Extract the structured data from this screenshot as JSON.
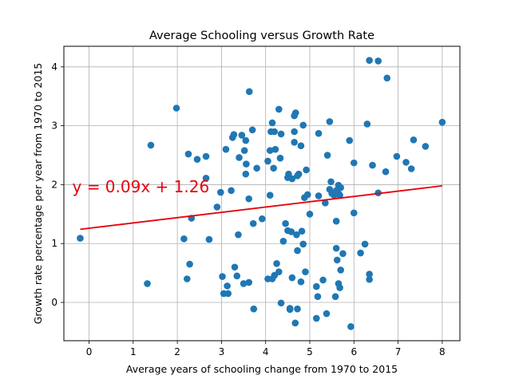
{
  "chart_data": {
    "type": "scatter",
    "title": "Average Schooling versus Growth Rate",
    "xlabel": "Average years of schooling change from 1970 to 2015",
    "ylabel": "Growth rate percentage per year from 1970 to 2015",
    "xlim": [
      -0.57,
      8.4
    ],
    "ylim": [
      -0.65,
      4.35
    ],
    "xticks": [
      0,
      1,
      2,
      3,
      4,
      5,
      6,
      7,
      8
    ],
    "yticks": [
      0,
      1,
      2,
      3,
      4
    ],
    "grid": true,
    "colors": {
      "points": "#1f77b4",
      "fit_line": "#e8000b",
      "annotation": "#e8000b",
      "grid": "#b0b0b0"
    },
    "fit_line": {
      "slope": 0.09,
      "intercept": 1.26,
      "x_range": [
        -0.2,
        8.0
      ]
    },
    "annotation": {
      "text": "y = 0.09x + 1.26",
      "x": -0.38,
      "y": 1.87
    },
    "points": [
      {
        "x": -0.2,
        "y": 1.09
      },
      {
        "x": 1.32,
        "y": 0.32
      },
      {
        "x": 1.4,
        "y": 2.67
      },
      {
        "x": 1.98,
        "y": 3.3
      },
      {
        "x": 2.15,
        "y": 1.08
      },
      {
        "x": 2.22,
        "y": 0.4
      },
      {
        "x": 2.25,
        "y": 2.52
      },
      {
        "x": 2.28,
        "y": 0.65
      },
      {
        "x": 2.32,
        "y": 1.43
      },
      {
        "x": 2.45,
        "y": 2.43
      },
      {
        "x": 2.65,
        "y": 2.48
      },
      {
        "x": 2.65,
        "y": 2.11
      },
      {
        "x": 2.72,
        "y": 1.07
      },
      {
        "x": 2.9,
        "y": 1.62
      },
      {
        "x": 2.98,
        "y": 1.87
      },
      {
        "x": 3.02,
        "y": 0.44
      },
      {
        "x": 3.05,
        "y": 0.15
      },
      {
        "x": 3.1,
        "y": 2.6
      },
      {
        "x": 3.13,
        "y": 0.28
      },
      {
        "x": 3.15,
        "y": 0.15
      },
      {
        "x": 3.22,
        "y": 1.9
      },
      {
        "x": 3.25,
        "y": 2.8
      },
      {
        "x": 3.28,
        "y": 2.85
      },
      {
        "x": 3.3,
        "y": 0.6
      },
      {
        "x": 3.35,
        "y": 0.45
      },
      {
        "x": 3.38,
        "y": 1.15
      },
      {
        "x": 3.4,
        "y": 2.46
      },
      {
        "x": 3.46,
        "y": 2.84
      },
      {
        "x": 3.5,
        "y": 0.32
      },
      {
        "x": 3.52,
        "y": 2.58
      },
      {
        "x": 3.55,
        "y": 2.75
      },
      {
        "x": 3.56,
        "y": 2.35
      },
      {
        "x": 3.55,
        "y": 2.18
      },
      {
        "x": 3.62,
        "y": 0.34
      },
      {
        "x": 3.62,
        "y": 1.76
      },
      {
        "x": 3.63,
        "y": 3.58
      },
      {
        "x": 3.7,
        "y": 2.93
      },
      {
        "x": 3.72,
        "y": 1.34
      },
      {
        "x": 3.73,
        "y": -0.11
      },
      {
        "x": 3.8,
        "y": 2.28
      },
      {
        "x": 3.92,
        "y": 1.42
      },
      {
        "x": 4.05,
        "y": 0.4
      },
      {
        "x": 4.05,
        "y": 2.4
      },
      {
        "x": 4.1,
        "y": 2.58
      },
      {
        "x": 4.1,
        "y": 1.82
      },
      {
        "x": 4.12,
        "y": 2.9
      },
      {
        "x": 4.15,
        "y": 0.4
      },
      {
        "x": 4.15,
        "y": 3.05
      },
      {
        "x": 4.18,
        "y": 2.28
      },
      {
        "x": 4.2,
        "y": 2.9
      },
      {
        "x": 4.22,
        "y": 2.6
      },
      {
        "x": 4.2,
        "y": 0.46
      },
      {
        "x": 4.25,
        "y": 0.66
      },
      {
        "x": 4.3,
        "y": 0.52
      },
      {
        "x": 4.3,
        "y": 3.28
      },
      {
        "x": 4.33,
        "y": 2.45
      },
      {
        "x": 4.35,
        "y": 2.86
      },
      {
        "x": 4.35,
        "y": -0.01
      },
      {
        "x": 4.4,
        "y": 1.04
      },
      {
        "x": 4.45,
        "y": 1.34
      },
      {
        "x": 4.5,
        "y": 1.22
      },
      {
        "x": 4.5,
        "y": 2.12
      },
      {
        "x": 4.52,
        "y": 2.18
      },
      {
        "x": 4.55,
        "y": -0.1
      },
      {
        "x": 4.55,
        "y": -0.12
      },
      {
        "x": 4.58,
        "y": 1.2
      },
      {
        "x": 4.6,
        "y": 0.42
      },
      {
        "x": 4.6,
        "y": 2.1
      },
      {
        "x": 4.65,
        "y": 3.17
      },
      {
        "x": 4.65,
        "y": 2.9
      },
      {
        "x": 4.65,
        "y": 2.72
      },
      {
        "x": 4.67,
        "y": -0.35
      },
      {
        "x": 4.68,
        "y": 3.22
      },
      {
        "x": 4.7,
        "y": 1.15
      },
      {
        "x": 4.72,
        "y": -0.11
      },
      {
        "x": 4.72,
        "y": 2.15
      },
      {
        "x": 4.72,
        "y": 0.88
      },
      {
        "x": 4.75,
        "y": 2.18
      },
      {
        "x": 4.8,
        "y": 2.66
      },
      {
        "x": 4.8,
        "y": 0.35
      },
      {
        "x": 4.82,
        "y": 1.21
      },
      {
        "x": 4.85,
        "y": 0.99
      },
      {
        "x": 4.85,
        "y": 3.01
      },
      {
        "x": 4.88,
        "y": 1.78
      },
      {
        "x": 4.9,
        "y": 0.52
      },
      {
        "x": 4.92,
        "y": 2.25
      },
      {
        "x": 4.95,
        "y": 1.83
      },
      {
        "x": 5.0,
        "y": 1.5
      },
      {
        "x": 5.15,
        "y": -0.27
      },
      {
        "x": 5.15,
        "y": 0.27
      },
      {
        "x": 5.18,
        "y": 0.1
      },
      {
        "x": 5.2,
        "y": 2.87
      },
      {
        "x": 5.2,
        "y": 1.81
      },
      {
        "x": 5.3,
        "y": 0.38
      },
      {
        "x": 5.35,
        "y": 1.69
      },
      {
        "x": 5.38,
        "y": -0.19
      },
      {
        "x": 5.4,
        "y": 2.5
      },
      {
        "x": 5.45,
        "y": 3.07
      },
      {
        "x": 5.45,
        "y": 1.92
      },
      {
        "x": 5.48,
        "y": 2.05
      },
      {
        "x": 5.5,
        "y": 1.85
      },
      {
        "x": 5.55,
        "y": 1.82
      },
      {
        "x": 5.58,
        "y": 0.1
      },
      {
        "x": 5.6,
        "y": 1.9
      },
      {
        "x": 5.6,
        "y": 1.38
      },
      {
        "x": 5.6,
        "y": 0.92
      },
      {
        "x": 5.62,
        "y": 0.72
      },
      {
        "x": 5.65,
        "y": 1.99
      },
      {
        "x": 5.65,
        "y": 1.85
      },
      {
        "x": 5.65,
        "y": 0.32
      },
      {
        "x": 5.68,
        "y": 1.82
      },
      {
        "x": 5.68,
        "y": 0.25
      },
      {
        "x": 5.7,
        "y": 1.95
      },
      {
        "x": 5.7,
        "y": 0.55
      },
      {
        "x": 5.75,
        "y": 0.83
      },
      {
        "x": 5.9,
        "y": 2.75
      },
      {
        "x": 5.93,
        "y": -0.41
      },
      {
        "x": 6.0,
        "y": 2.37
      },
      {
        "x": 6.0,
        "y": 1.52
      },
      {
        "x": 6.15,
        "y": 0.84
      },
      {
        "x": 6.25,
        "y": 0.99
      },
      {
        "x": 6.3,
        "y": 3.03
      },
      {
        "x": 6.35,
        "y": 0.48
      },
      {
        "x": 6.35,
        "y": 0.39
      },
      {
        "x": 6.35,
        "y": 4.11
      },
      {
        "x": 6.42,
        "y": 2.33
      },
      {
        "x": 6.55,
        "y": 4.1
      },
      {
        "x": 6.55,
        "y": 1.86
      },
      {
        "x": 6.72,
        "y": 2.22
      },
      {
        "x": 6.75,
        "y": 3.81
      },
      {
        "x": 6.97,
        "y": 2.48
      },
      {
        "x": 7.18,
        "y": 2.38
      },
      {
        "x": 7.3,
        "y": 2.27
      },
      {
        "x": 7.35,
        "y": 2.76
      },
      {
        "x": 7.62,
        "y": 2.65
      },
      {
        "x": 8.0,
        "y": 3.06
      }
    ]
  }
}
